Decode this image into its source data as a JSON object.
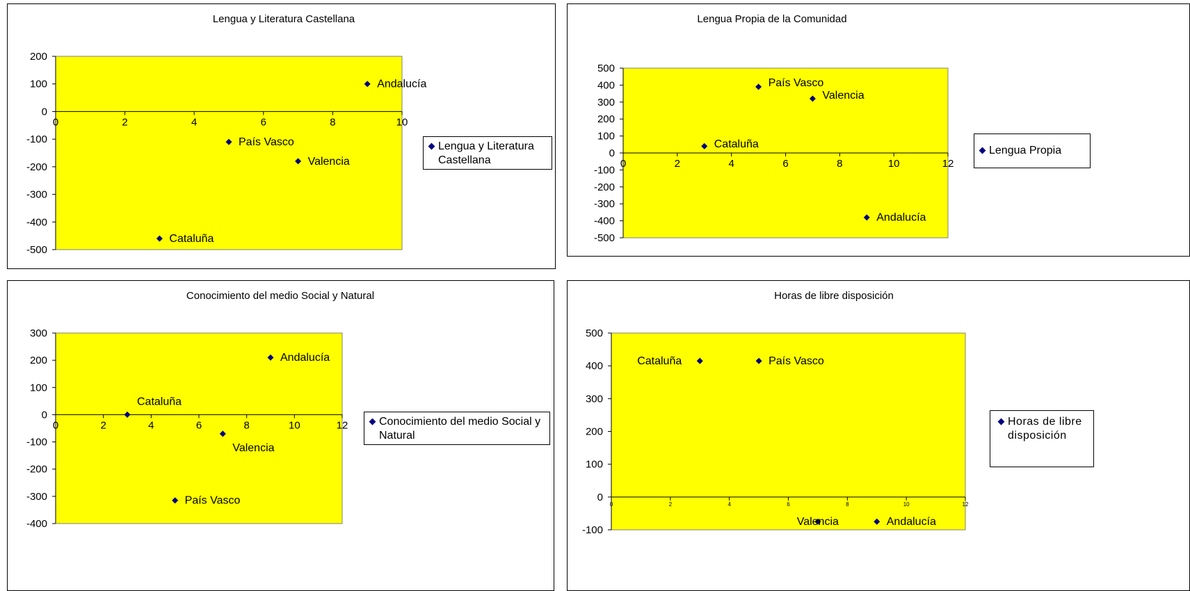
{
  "chart_data": [
    {
      "type": "scatter",
      "title": "Lengua y Literatura Castellana",
      "series": [
        {
          "name": "Lengua y Literatura Castellana",
          "points": [
            {
              "x": 3,
              "y": -460,
              "label": "Cataluña"
            },
            {
              "x": 5,
              "y": -110,
              "label": "País Vasco"
            },
            {
              "x": 7,
              "y": -180,
              "label": "Valencia"
            },
            {
              "x": 9,
              "y": 100,
              "label": "Andalucía"
            }
          ]
        }
      ],
      "xlim": [
        0,
        10
      ],
      "ylim": [
        -500,
        200
      ],
      "xticks": [
        "0",
        "2",
        "4",
        "6",
        "8",
        "10"
      ],
      "yticks": [
        "200",
        "100",
        "0",
        "-100",
        "-200",
        "-300",
        "-400",
        "-500"
      ],
      "plot_bg": "#ffff00",
      "marker_color": "#000080",
      "legend": "right"
    },
    {
      "type": "scatter",
      "title": "Lengua Propia de la Comunidad",
      "series": [
        {
          "name": "Lengua Propia",
          "points": [
            {
              "x": 3,
              "y": 40,
              "label": "Cataluña"
            },
            {
              "x": 5,
              "y": 390,
              "label": "País Vasco"
            },
            {
              "x": 7,
              "y": 320,
              "label": "Valencia"
            },
            {
              "x": 9,
              "y": -380,
              "label": "Andalucía"
            }
          ]
        }
      ],
      "xlim": [
        0,
        12
      ],
      "ylim": [
        -500,
        500
      ],
      "xticks": [
        "0",
        "2",
        "4",
        "6",
        "8",
        "10",
        "12"
      ],
      "yticks": [
        "500",
        "400",
        "300",
        "200",
        "100",
        "0",
        "-100",
        "-200",
        "-300",
        "-400",
        "-500"
      ],
      "plot_bg": "#ffff00",
      "marker_color": "#000080",
      "legend": "right"
    },
    {
      "type": "scatter",
      "title": "Conocimiento del medio Social y Natural",
      "series": [
        {
          "name": "Conocimiento del medio Social y Natural",
          "points": [
            {
              "x": 3,
              "y": 0,
              "label": "Cataluña"
            },
            {
              "x": 5,
              "y": -315,
              "label": "País Vasco"
            },
            {
              "x": 7,
              "y": -70,
              "label": "Valencia"
            },
            {
              "x": 9,
              "y": 210,
              "label": "Andalucía"
            }
          ]
        }
      ],
      "xlim": [
        0,
        12
      ],
      "ylim": [
        -400,
        300
      ],
      "xticks": [
        "0",
        "2",
        "4",
        "6",
        "8",
        "10",
        "12"
      ],
      "yticks": [
        "300",
        "200",
        "100",
        "0",
        "-100",
        "-200",
        "-300",
        "-400"
      ],
      "plot_bg": "#ffff00",
      "marker_color": "#000080",
      "legend": "right"
    },
    {
      "type": "scatter",
      "title": "Horas de libre disposición",
      "series": [
        {
          "name": "Horas de libre disposición",
          "points": [
            {
              "x": 3,
              "y": 415,
              "label": "Cataluña"
            },
            {
              "x": 5,
              "y": 415,
              "label": "País Vasco"
            },
            {
              "x": 7,
              "y": -75,
              "label": "Valencia"
            },
            {
              "x": 9,
              "y": -75,
              "label": "Andalucía"
            }
          ]
        }
      ],
      "xlim": [
        0,
        12
      ],
      "ylim": [
        -100,
        500
      ],
      "xticks": [
        "0",
        "2",
        "4",
        "6",
        "8",
        "10",
        "12"
      ],
      "yticks": [
        "500",
        "400",
        "300",
        "200",
        "100",
        "0",
        "-100"
      ],
      "plot_bg": "#ffff00",
      "marker_color": "#000080",
      "legend": "right"
    }
  ]
}
